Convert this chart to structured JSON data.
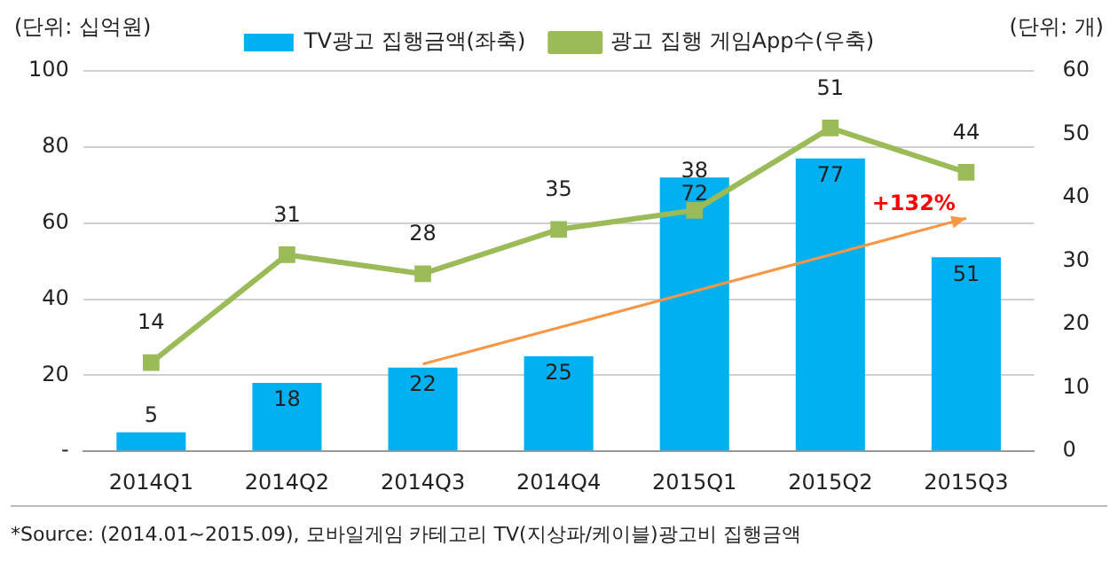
{
  "chart_data": {
    "type": "bar",
    "categories": [
      "2014Q1",
      "2014Q2",
      "2014Q3",
      "2014Q4",
      "2015Q1",
      "2015Q2",
      "2015Q3"
    ],
    "series": [
      {
        "name": "TV광고 집행금액(좌축)",
        "color": "#00b0f0",
        "values": [
          5,
          18,
          22,
          25,
          72,
          77,
          51
        ]
      },
      {
        "name": "광고 집행 게임App수(우축)",
        "type": "line",
        "axis": "y2",
        "color": "#9bbb59",
        "marker": "square",
        "values": [
          14,
          31,
          28,
          35,
          38,
          51,
          44
        ]
      }
    ],
    "ylabel": "(단위: 십억원)",
    "y2label": "(단위: 개)",
    "ylim": [
      0,
      100
    ],
    "yticks": [
      {
        "value": 0,
        "label": "-"
      },
      20,
      40,
      60,
      80,
      100
    ],
    "y2lim": [
      0,
      60
    ],
    "y2ticks": [
      0,
      10,
      20,
      30,
      40,
      50,
      60
    ],
    "grid": "y",
    "legend": "top",
    "data_labels": true,
    "annotations": [
      "+132%",
      "*Source: (2014.01~2015.09), 모바일게임 카테고리 TV(지상파/케이블)광고비 집행금액"
    ]
  }
}
